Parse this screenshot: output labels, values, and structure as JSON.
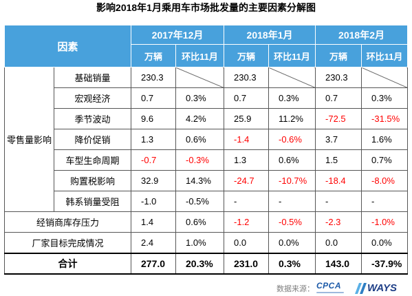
{
  "colors": {
    "header_bg": "#48a1dc",
    "header_text": "#ffffff",
    "highlight": "#ff0000"
  },
  "chart_data": {
    "type": "table",
    "title": "影响2018年1月乘用车市场批发量的主要因素分解图",
    "factor_header": "因素",
    "periods": [
      {
        "label": "2017年12月",
        "columns": [
          "万辆",
          "环比11月"
        ]
      },
      {
        "label": "2018年1月",
        "columns": [
          "万辆",
          "环比11月"
        ]
      },
      {
        "label": "2018年2月",
        "columns": [
          "万辆",
          "环比11月"
        ]
      }
    ],
    "sections": [
      {
        "group": "零售量影响",
        "rows": [
          {
            "factor": "基础销量",
            "values": [
              "230.3",
              null,
              "230.3",
              null,
              "230.3",
              null
            ]
          },
          {
            "factor": "宏观经济",
            "values": [
              "0.7",
              "0.3%",
              "0.7",
              "0.3%",
              "0.7",
              "0.3%"
            ]
          },
          {
            "factor": "季节波动",
            "values": [
              "9.6",
              "4.2%",
              "25.9",
              "11.2%",
              "-72.5",
              "-31.5%"
            ],
            "red_cells": [
              4,
              5
            ]
          },
          {
            "factor": "降价促销",
            "values": [
              "1.3",
              "0.6%",
              "-1.4",
              "-0.6%",
              "3.7",
              "1.6%"
            ],
            "red_cells": [
              2,
              3
            ]
          },
          {
            "factor": "车型生命周期",
            "values": [
              "-0.7",
              "-0.3%",
              "1.3",
              "0.6%",
              "1.5",
              "0.7%"
            ],
            "red_cells": [
              0,
              1
            ]
          },
          {
            "factor": "购置税影响",
            "values": [
              "32.9",
              "14.3%",
              "-24.7",
              "-10.7%",
              "-18.4",
              "-8.0%"
            ],
            "red_cells": [
              2,
              3,
              4,
              5
            ]
          },
          {
            "factor": "韩系销量受阻",
            "values": [
              "-1.0",
              "-0.5%",
              "-",
              "-",
              "-",
              "-"
            ]
          }
        ]
      },
      {
        "rows": [
          {
            "factor": "经销商库存压力",
            "values": [
              "1.4",
              "0.6%",
              "-1.2",
              "-0.5%",
              "-2.3",
              "-1.0%"
            ],
            "red_cells": [
              2,
              3,
              4,
              5
            ]
          },
          {
            "factor": "厂家目标完成情况",
            "values": [
              "2.4",
              "1.0%",
              "0.0",
              "0.0%",
              "0.0",
              "0.0%"
            ]
          }
        ]
      }
    ],
    "total": {
      "label": "合计",
      "values": [
        "277.0",
        "20.3%",
        "231.0",
        "0.3%",
        "143.0",
        "-37.9%"
      ]
    }
  },
  "footer": {
    "source_label": "数据来源：",
    "logos": {
      "cpca": "CPCA",
      "ways": "WAYS"
    }
  }
}
